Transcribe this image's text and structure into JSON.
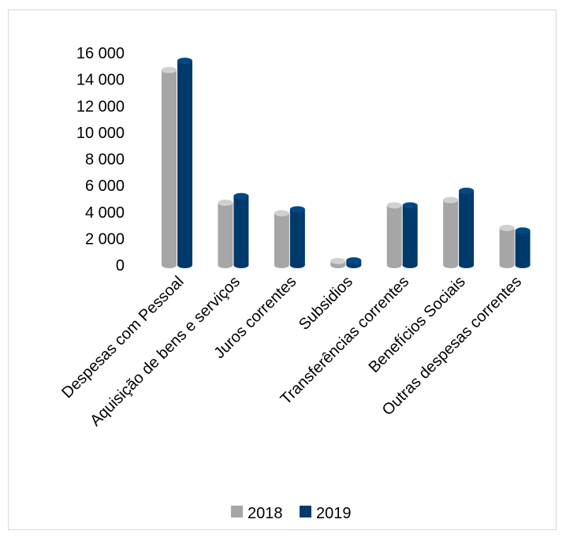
{
  "chart_data": {
    "type": "bar",
    "title": "",
    "xlabel": "",
    "ylabel": "",
    "categories": [
      "Despesas com Pessoal",
      "Aquisição de bens e serviços",
      "Juros correntes",
      "Subsidios",
      "Transferências correntes",
      "Benefícios Sociais",
      "Outras despesas correntes"
    ],
    "series": [
      {
        "name": "2018",
        "color": "#a6a6a6",
        "values": [
          14700,
          4700,
          3900,
          300,
          4500,
          4900,
          2800
        ]
      },
      {
        "name": "2019",
        "color": "#003a6b",
        "values": [
          15400,
          5200,
          4200,
          350,
          4500,
          5600,
          2600
        ]
      }
    ],
    "ylim": [
      0,
      16000
    ],
    "yticks": [
      0,
      2000,
      4000,
      6000,
      8000,
      10000,
      12000,
      14000,
      16000
    ],
    "ytick_labels": [
      "0",
      "2 000",
      "4 000",
      "6 000",
      "8 000",
      "10 000",
      "12 000",
      "14 000",
      "16 000"
    ],
    "grid": false,
    "legend_position": "bottom"
  }
}
